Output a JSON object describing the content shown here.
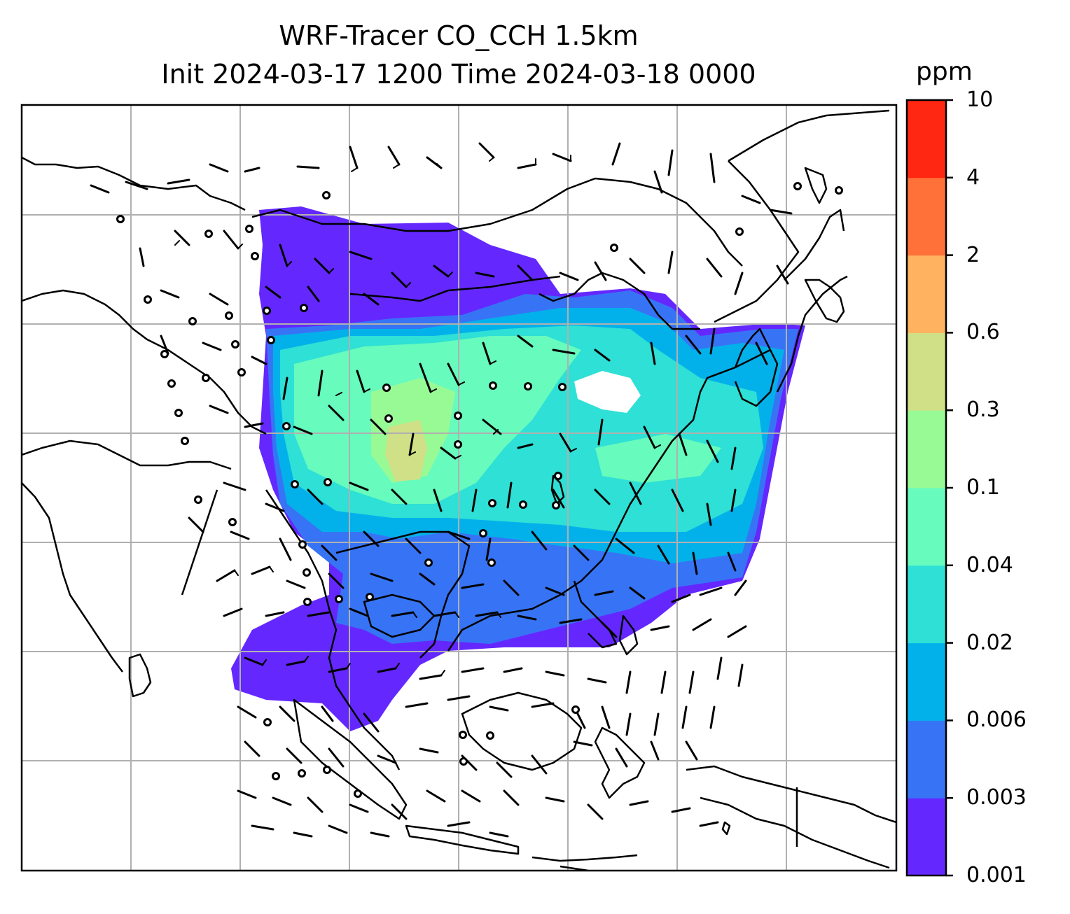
{
  "title": {
    "line1": "WRF-Tracer CO_CCH 1.5km",
    "line2": "Init 2024-03-17 1200 Time 2024-03-18 0000"
  },
  "colorbar": {
    "unit": "ppm",
    "levels": [
      "0.001",
      "0.003",
      "0.006",
      "0.02",
      "0.04",
      "0.1",
      "0.3",
      "0.6",
      "2",
      "4",
      "10"
    ],
    "colors": [
      "#6428ff",
      "#3774f5",
      "#03b1ea",
      "#2ee0d5",
      "#67fbbd",
      "#98fa95",
      "#cfe086",
      "#ffb25f",
      "#ff7138",
      "#ff2712"
    ]
  },
  "map": {
    "coastline_color": "#000000",
    "grid_color": "#b0b0b0",
    "field_description_colors": {
      "lowest": "#6428ff",
      "low": "#3774f5",
      "mid": "#03b1ea",
      "midhigh": "#2ee0d5",
      "high": "#67fbbd",
      "peak": "#cfe086"
    }
  }
}
